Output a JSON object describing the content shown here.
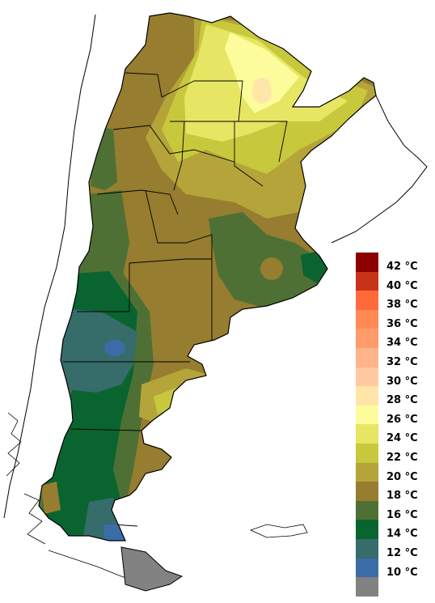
{
  "legend": {
    "items": [
      {
        "label": "42 °C",
        "color": "#8b0000"
      },
      {
        "label": "40 °C",
        "color": "#c83218"
      },
      {
        "label": "38 °C",
        "color": "#ff6a3a"
      },
      {
        "label": "36 °C",
        "color": "#ff8a54"
      },
      {
        "label": "34 °C",
        "color": "#ff9c6a"
      },
      {
        "label": "32 °C",
        "color": "#ffb48a"
      },
      {
        "label": "30 °C",
        "color": "#ffc8a0"
      },
      {
        "label": "28 °C",
        "color": "#ffe6a8"
      },
      {
        "label": "26 °C",
        "color": "#fcfc9c"
      },
      {
        "label": "24 °C",
        "color": "#e6e664"
      },
      {
        "label": "22 °C",
        "color": "#c8c83c"
      },
      {
        "label": "20 °C",
        "color": "#b4a43a"
      },
      {
        "label": "18 °C",
        "color": "#967d2f"
      },
      {
        "label": "16 °C",
        "color": "#4f7034"
      },
      {
        "label": "14 °C",
        "color": "#0a6430"
      },
      {
        "label": "12 °C",
        "color": "#366c6a"
      },
      {
        "label": "10 °C",
        "color": "#3c6ca8"
      },
      {
        "label": "",
        "color": "#828282"
      }
    ]
  }
}
